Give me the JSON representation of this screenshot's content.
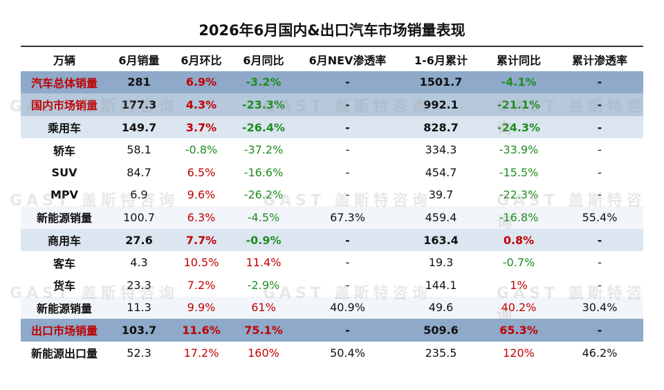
{
  "title": "2026年6月国内&出口汽车市场销量表现",
  "watermark": "GAST 盖斯特咨询",
  "columns": [
    "万辆",
    "6月销量",
    "6月环比",
    "6月同比",
    "6月NEV渗透率",
    "1-6月累计",
    "累计同比",
    "累计渗透率"
  ],
  "rows": [
    {
      "label": "汽车总体销量",
      "cells": [
        "281",
        "6.9%",
        "-3.2%",
        "-",
        "1501.7",
        "-4.1%",
        "-"
      ]
    },
    {
      "label": "国内市场销量",
      "cells": [
        "177.3",
        "4.3%",
        "-23.3%",
        "-",
        "992.1",
        "-21.1%",
        "-"
      ]
    },
    {
      "label": "乘用车",
      "cells": [
        "149.7",
        "3.7%",
        "-26.4%",
        "-",
        "828.7",
        "-24.3%",
        "-"
      ]
    },
    {
      "label": "轿车",
      "cells": [
        "58.1",
        "-0.8%",
        "-37.2%",
        "-",
        "334.3",
        "-33.9%",
        "-"
      ]
    },
    {
      "label": "SUV",
      "cells": [
        "84.7",
        "6.5%",
        "-16.6%",
        "-",
        "454.7",
        "-15.5%",
        "-"
      ]
    },
    {
      "label": "MPV",
      "cells": [
        "6.9",
        "9.6%",
        "-26.2%",
        "-",
        "39.7",
        "-22.3%",
        "-"
      ]
    },
    {
      "label": "新能源销量",
      "cells": [
        "100.7",
        "6.3%",
        "-4.5%",
        "67.3%",
        "459.4",
        "-16.8%",
        "55.4%"
      ]
    },
    {
      "label": "商用车",
      "cells": [
        "27.6",
        "7.7%",
        "-0.9%",
        "-",
        "163.4",
        "0.8%",
        "-"
      ]
    },
    {
      "label": "客车",
      "cells": [
        "4.3",
        "10.5%",
        "11.4%",
        "-",
        "19.3",
        "-0.7%",
        "-"
      ]
    },
    {
      "label": "货车",
      "cells": [
        "23.3",
        "7.2%",
        "-2.9%",
        "-",
        "144.1",
        "1%",
        "-"
      ]
    },
    {
      "label": "新能源销量",
      "cells": [
        "11.3",
        "9.9%",
        "61%",
        "40.9%",
        "49.6",
        "40.2%",
        "30.4%"
      ]
    },
    {
      "label": "出口市场销量",
      "cells": [
        "103.7",
        "11.6%",
        "75.1%",
        "-",
        "509.6",
        "65.3%",
        "-"
      ]
    },
    {
      "label": "新能源出口量",
      "cells": [
        "52.3",
        "17.2%",
        "160%",
        "50.4%",
        "235.5",
        "120%",
        "46.2%"
      ]
    }
  ]
}
